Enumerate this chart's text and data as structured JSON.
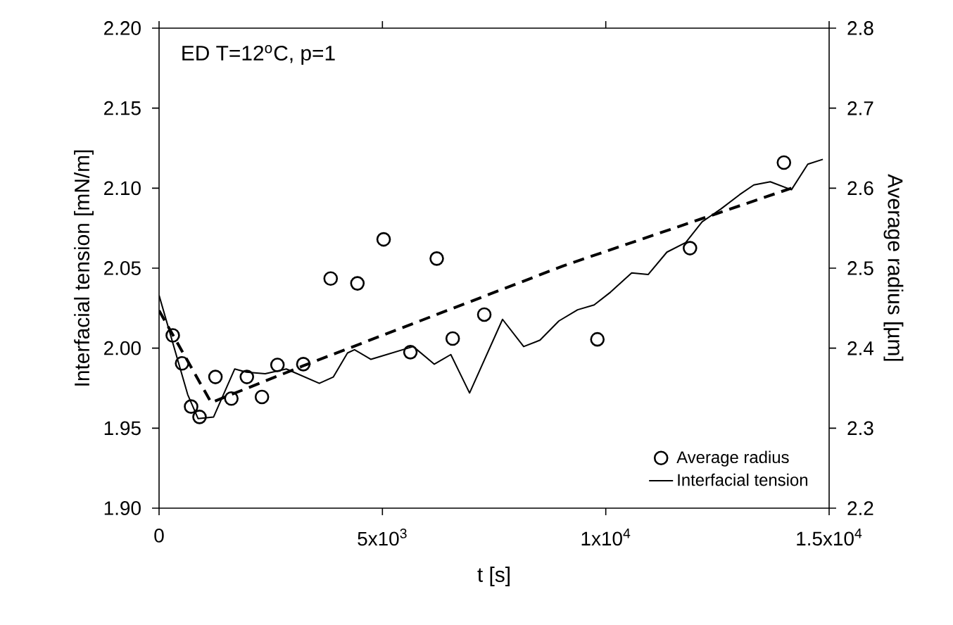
{
  "chart_data": {
    "type": "line",
    "xlabel": "t [s]",
    "ylabel": "Interfacial tension [mN/m]",
    "y2label": "Average radius [µm]",
    "annotations": [
      "ED T=12$^{o}$C, p=1"
    ],
    "xlim": [
      0,
      15000
    ],
    "xticks": [
      0,
      {
        "value": 5000,
        "label": "5x10$^{3}$"
      },
      {
        "value": 10000,
        "label": "1x10$^{4}$"
      },
      {
        "value": 15000,
        "label": "1.5x10$^{4}$"
      }
    ],
    "ylim": [
      1.9,
      2.2
    ],
    "yticks": [
      {
        "value": 1.9,
        "label": "1.90"
      },
      1.95,
      {
        "value": 2.0,
        "label": "2.00"
      },
      2.05,
      {
        "value": 2.1,
        "label": "2.10"
      },
      2.15,
      {
        "value": 2.2,
        "label": "2.20"
      }
    ],
    "y2lim": [
      2.2,
      2.8
    ],
    "y2ticks": [
      2.2,
      2.3,
      2.4,
      2.5,
      2.6,
      2.7,
      2.8
    ],
    "legend": "bottom right",
    "series": [
      {
        "name": "Average radius",
        "type": "scatter",
        "axis": "y2",
        "marker": "circle",
        "color": "#000000",
        "x": [
          306,
          515,
          717,
          906,
          1262,
          1618,
          1965,
          2303,
          2650,
          3229,
          3841,
          4440,
          5027,
          5626,
          6216,
          6573,
          7280,
          9812,
          11885,
          13988
        ],
        "values": [
          2.416,
          2.381,
          2.327,
          2.314,
          2.364,
          2.337,
          2.364,
          2.339,
          2.379,
          2.38,
          2.487,
          2.481,
          2.536,
          2.395,
          2.512,
          2.412,
          2.442,
          2.411,
          2.525,
          2.632
        ]
      },
      {
        "name": "Interfacial tension",
        "marker": "none",
        "line_style": "solid",
        "color": "#000000",
        "x": [
          0,
          641,
          873,
          1221,
          1694,
          1956,
          2376,
          2849,
          3587,
          3902,
          4218,
          4375,
          4743,
          5689,
          6162,
          6531,
          6951,
          7689,
          8162,
          8528,
          8951,
          9370,
          9739,
          10106,
          10580,
          10948,
          11368,
          11789,
          12157,
          12578,
          12999,
          13314,
          13683,
          14156,
          14523,
          14860
        ],
        "values": [
          2.033,
          1.971,
          1.956,
          1.957,
          1.987,
          1.985,
          1.984,
          1.987,
          1.978,
          1.982,
          1.997,
          1.999,
          1.993,
          2.001,
          1.99,
          1.996,
          1.972,
          2.018,
          2.001,
          2.005,
          2.017,
          2.024,
          2.027,
          2.035,
          2.047,
          2.046,
          2.06,
          2.066,
          2.079,
          2.087,
          2.096,
          2.102,
          2.104,
          2.099,
          2.115,
          2.118
        ]
      },
      {
        "axis": "y2",
        "marker": "none",
        "line_style": "dashed",
        "color": "#000000",
        "x": [
          0,
          1167,
          3229,
          9055,
          14156
        ],
        "values": [
          2.447,
          2.332,
          2.378,
          2.503,
          2.6
        ]
      }
    ]
  }
}
